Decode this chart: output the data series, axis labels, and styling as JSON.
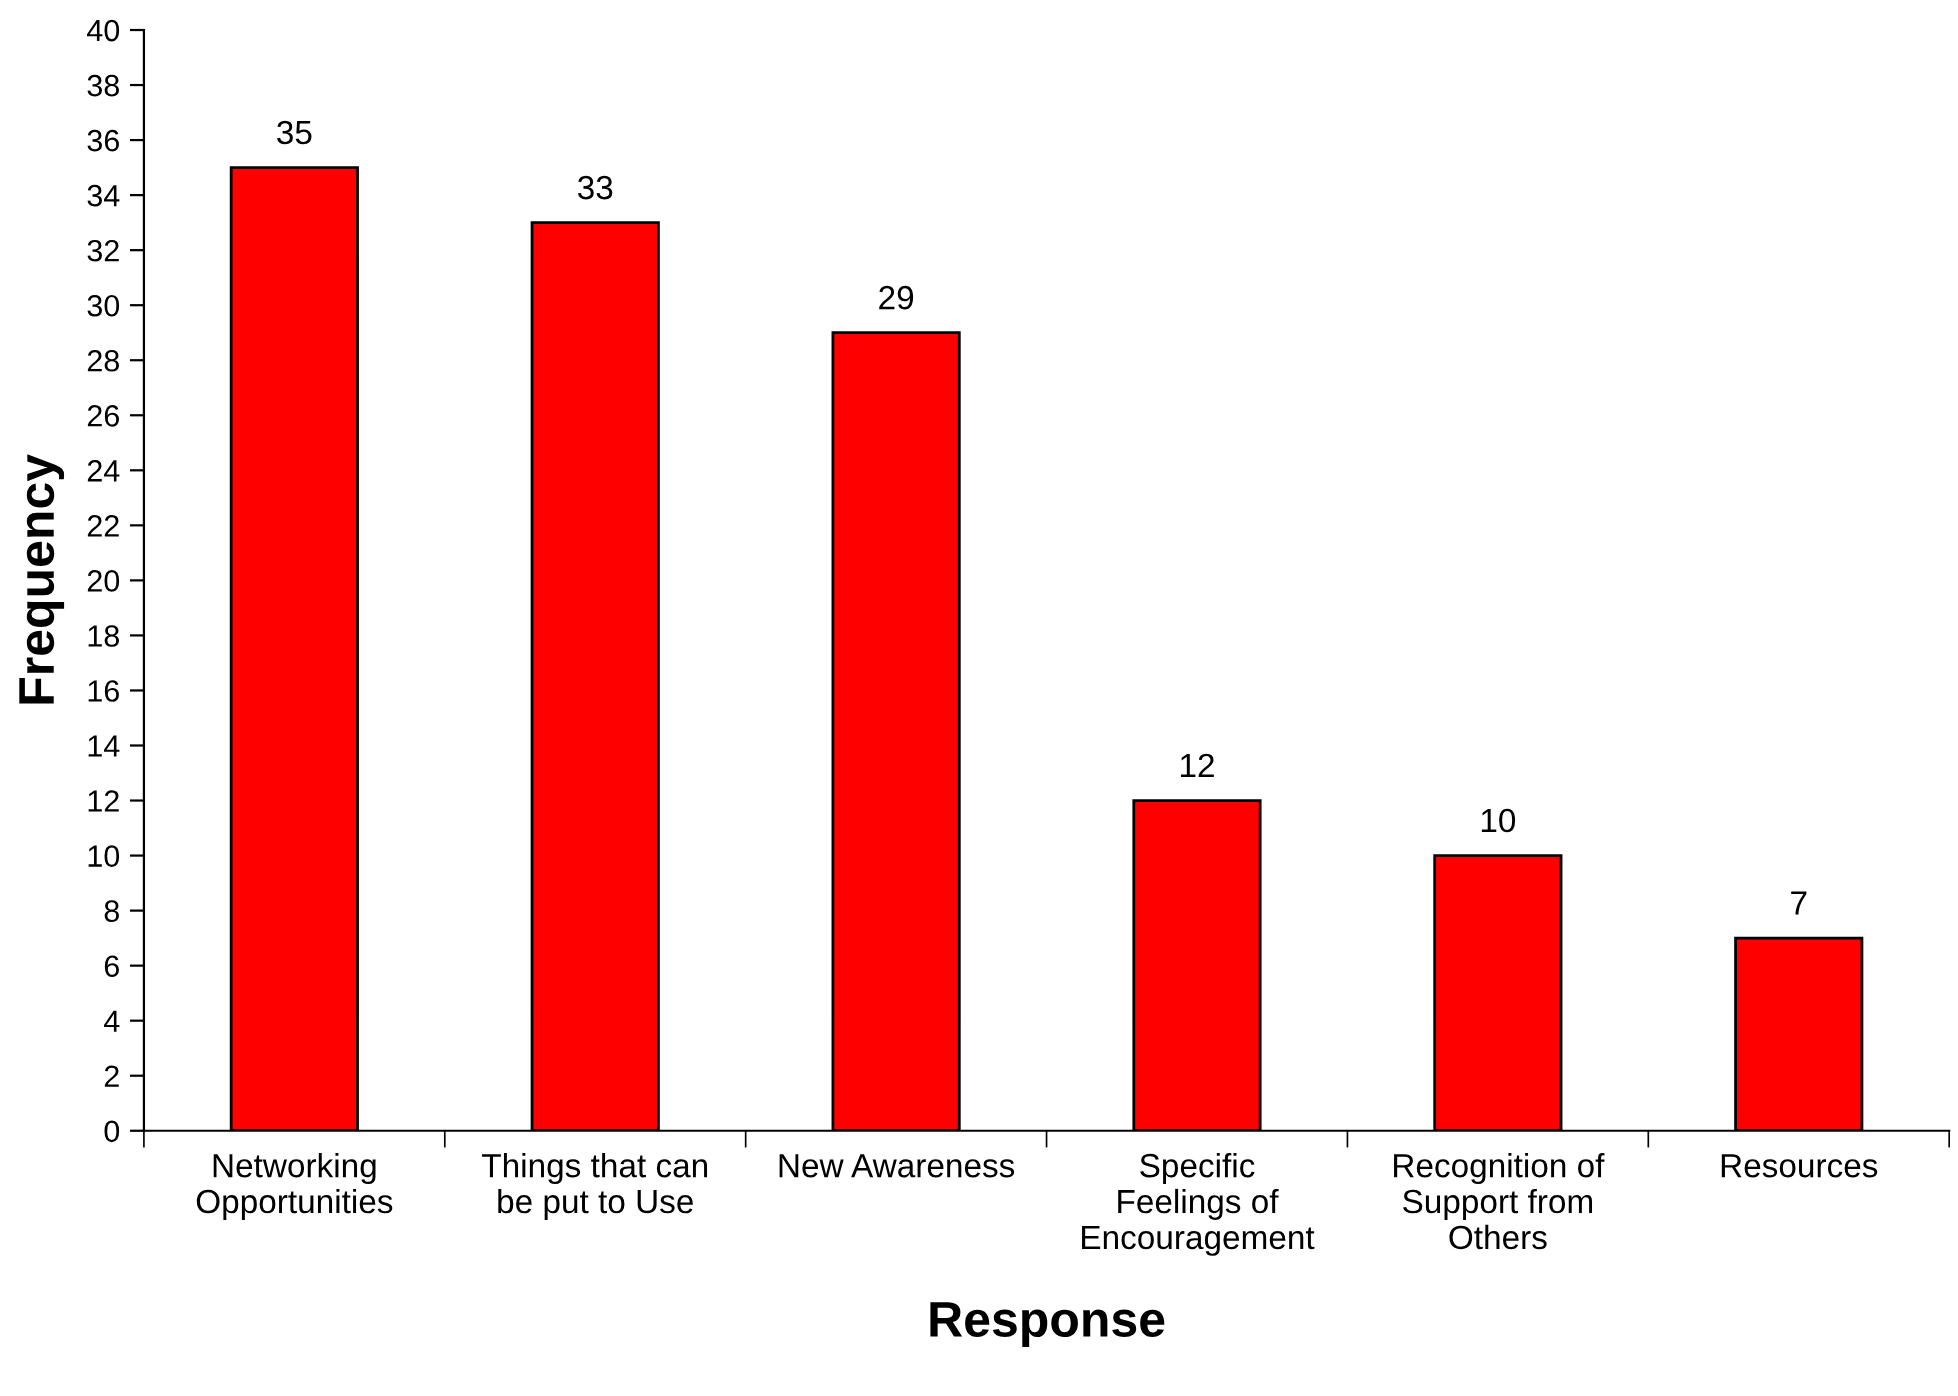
{
  "chart_data": {
    "type": "bar",
    "xlabel": "Response",
    "ylabel": "Frequency",
    "categories": [
      "Networking\nOpportunities",
      "Things that can\nbe put to Use",
      "New Awareness",
      "Specific\nFeelings of\nEncouragement",
      "Recognition of\nSupport from\nOthers",
      "Resources"
    ],
    "values": [
      35,
      33,
      29,
      12,
      10,
      7
    ],
    "color": "#ff0000",
    "data_labels": true,
    "grid": false,
    "legend": false,
    "ylim": [
      0,
      40
    ],
    "yticks": [
      0,
      2,
      4,
      6,
      8,
      10,
      12,
      14,
      16,
      18,
      20,
      22,
      24,
      26,
      28,
      30,
      32,
      34,
      36,
      38,
      40
    ]
  }
}
